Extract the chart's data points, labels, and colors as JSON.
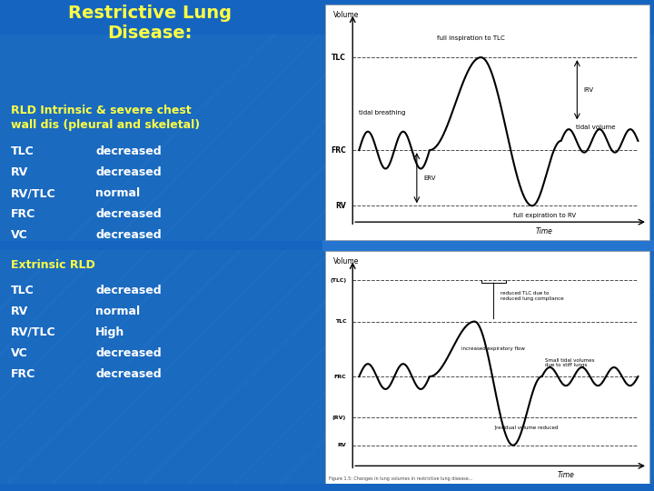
{
  "bg_color": "#1a6abf",
  "bg_color_dark": "#1250a0",
  "title_line1": "Restrictive Lung",
  "title_line2": "Disease:",
  "title_color": "#ffff44",
  "title_fontsize": 14,
  "section1_header_line1": "RLD Intrinsic & severe chest",
  "section1_header_line2": "wall dis (pleural and skeletal)",
  "section1_color": "#ffff44",
  "section1_fontsize": 9,
  "section1_rows": [
    [
      "TLC",
      "decreased"
    ],
    [
      "RV",
      "decreased"
    ],
    [
      "RV/TLC",
      "normal"
    ],
    [
      "FRC",
      "decreased"
    ],
    [
      "VC",
      "decreased"
    ]
  ],
  "section2_header": "Extrinsic RLD",
  "section2_color": "#ffff44",
  "section2_fontsize": 9,
  "section2_rows": [
    [
      "TLC",
      "decreased"
    ],
    [
      "RV",
      "normal"
    ],
    [
      "RV/TLC",
      "High"
    ],
    [
      "VC",
      "decreased"
    ],
    [
      "FRC",
      "decreased"
    ]
  ],
  "row_label_color": "#ffffff",
  "row_value_color": "#ffffff",
  "row_fontsize": 9,
  "divider_color": "#2060b0",
  "top_banner_color": "#1a6abf",
  "mid_divider_color": "#2575d0"
}
